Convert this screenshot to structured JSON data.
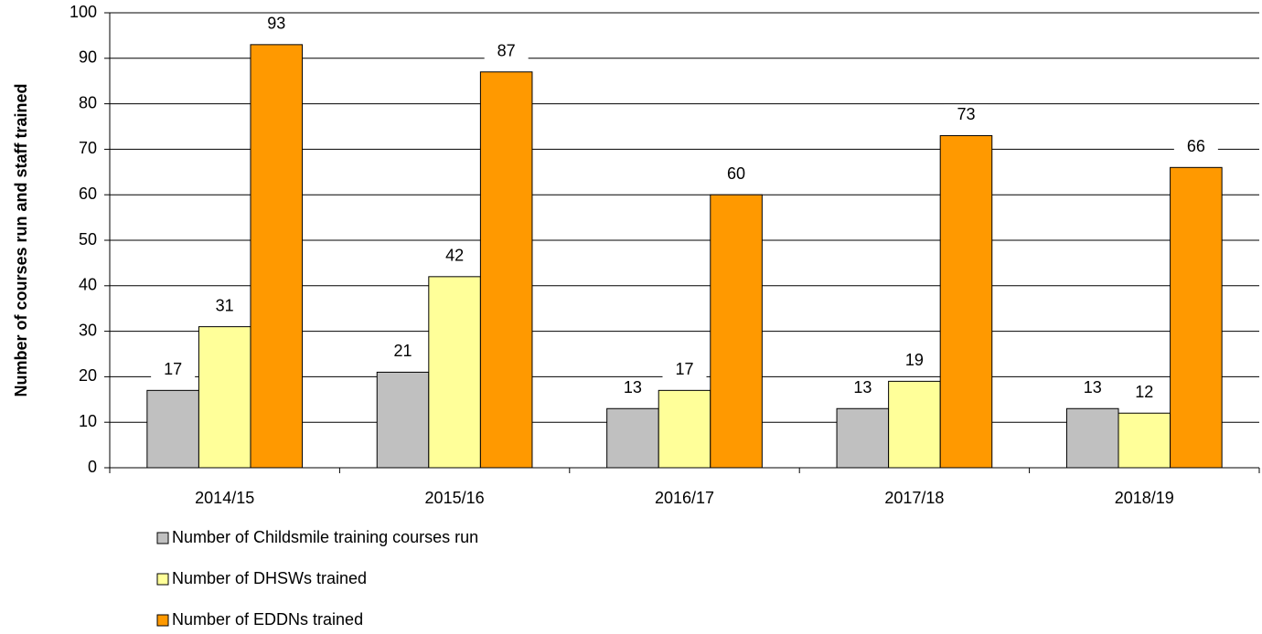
{
  "chart_data": {
    "type": "bar",
    "y_label": "Number of courses run and staff trained",
    "categories": [
      "2014/15",
      "2015/16",
      "2016/17",
      "2017/18",
      "2018/19"
    ],
    "series": [
      {
        "name": "Number of Childsmile training courses run",
        "color": "#c0c0c0",
        "values": [
          17,
          21,
          13,
          13,
          13
        ]
      },
      {
        "name": "Number of DHSWs trained",
        "color": "#ffff99",
        "values": [
          31,
          42,
          17,
          19,
          12
        ]
      },
      {
        "name": "Number of EDDNs trained",
        "color": "#ff9900",
        "values": [
          93,
          87,
          60,
          73,
          66
        ]
      }
    ],
    "ylim": [
      0,
      100
    ],
    "yticks": [
      0,
      10,
      20,
      30,
      40,
      50,
      60,
      70,
      80,
      90,
      100
    ],
    "grid": true
  }
}
